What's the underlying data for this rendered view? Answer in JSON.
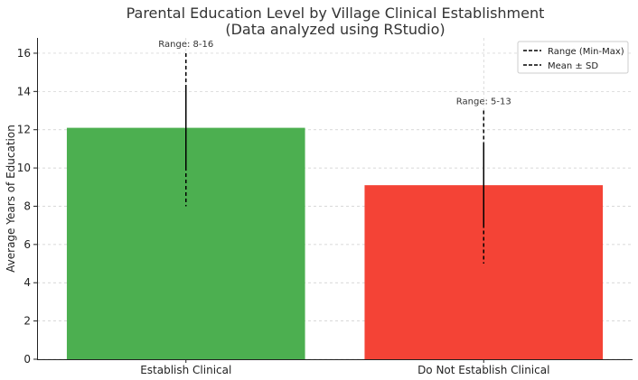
{
  "chart_data": {
    "type": "bar",
    "title": "Parental Education Level by Village Clinical Establishment",
    "subtitle": "(Data analyzed using RStudio)",
    "xlabel": "",
    "ylabel": "Average Years of Education",
    "categories": [
      "Establish Clinical",
      "Do Not Establish Clinical"
    ],
    "values": [
      12.1,
      9.1
    ],
    "sd": [
      2.1,
      2.1
    ],
    "range_min": [
      8,
      5
    ],
    "range_max": [
      16,
      13
    ],
    "annotations": [
      "Range: 8-16",
      "Range: 5-13"
    ],
    "colors": [
      "#4caf50",
      "#f44336"
    ],
    "ylim": [
      0,
      16.8
    ],
    "yticks": [
      0,
      2,
      4,
      6,
      8,
      10,
      12,
      14,
      16
    ],
    "grid": true,
    "legend": {
      "position": "top-right",
      "entries": [
        "Range (Min-Max)",
        "Mean ± SD"
      ]
    }
  }
}
